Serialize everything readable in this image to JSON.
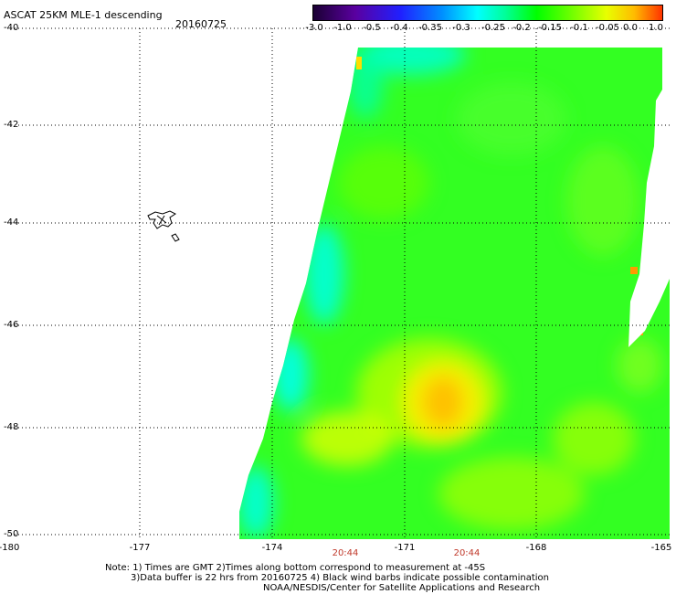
{
  "header": {
    "title": "ASCAT 25KM MLE-1 descending",
    "date": "20160725"
  },
  "colorbar": {
    "ticks": [
      "-3.0",
      "-1.0",
      "-0.5",
      "-0.4",
      "-0.35",
      "-0.3",
      "-0.25",
      "-0.2",
      "-0.15",
      "-0.1",
      "-0.05",
      "0.0",
      "1.0"
    ]
  },
  "axes": {
    "lat_labels": [
      "-40",
      "-42",
      "-44",
      "-46",
      "-48",
      "-50"
    ],
    "lon_labels": [
      "-180",
      "-177",
      "-174",
      "-171",
      "-168",
      "-165"
    ]
  },
  "pass_times": [
    "20:44",
    "20:44"
  ],
  "notes": {
    "line1": "Note: 1) Times are GMT 2)Times along bottom correspond to measurement at -45S",
    "line2": "3)Data buffer is 22 hrs from 20160725 4) Black wind barbs indicate possible contamination",
    "line3": "NOAA/NESDIS/Center for Satellite Applications and Research"
  },
  "colors": {
    "swath_base": "#33ff22",
    "cyan_edge": "#00ffdd",
    "yellow_core": "#ffcc00",
    "time_label": "#c0392b"
  }
}
